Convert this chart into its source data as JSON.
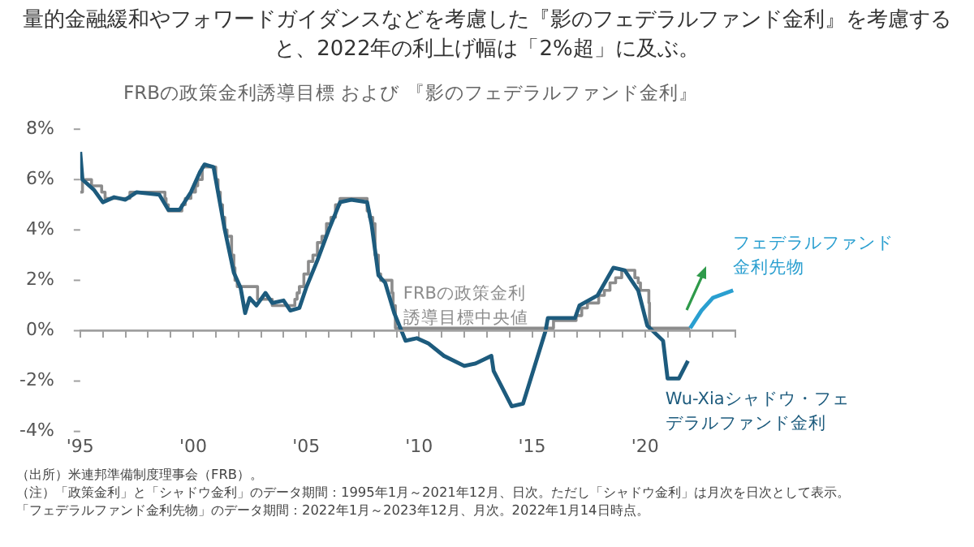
{
  "chart_data": {
    "type": "line",
    "title": "量的金融緩和やフォワードガイダンスなどを考慮した『影のフェデラルファンド金利』を考慮すると、2022年の利上げ幅は「2%超」に及ぶ。",
    "subtitle": "FRBの政策金利誘導目標 および 『影のフェデラルファンド金利』",
    "series": [
      {
        "name": "FRBの政策金利誘導目標中央値",
        "type": "step",
        "color": "#8c8c8c",
        "x": [
          1995.0,
          1995.1,
          1995.5,
          1995.95,
          1996.1,
          1997.2,
          1998.75,
          1998.8,
          1998.9,
          1999.5,
          1999.65,
          1999.9,
          2000.1,
          2000.2,
          2000.4,
          2001.0,
          2001.1,
          2001.2,
          2001.3,
          2001.4,
          2001.5,
          2001.7,
          2001.8,
          2001.85,
          2001.95,
          2002.85,
          2003.5,
          2004.5,
          2004.6,
          2004.7,
          2004.9,
          2005.1,
          2005.3,
          2005.5,
          2005.7,
          2005.9,
          2006.1,
          2006.3,
          2006.5,
          2007.7,
          2007.8,
          2007.95,
          2008.05,
          2008.2,
          2008.3,
          2008.8,
          2008.85,
          2008.95,
          2015.95,
          2016.95,
          2017.2,
          2017.45,
          2017.95,
          2018.2,
          2018.45,
          2018.7,
          2018.97,
          2019.55,
          2019.7,
          2019.8,
          2020.17,
          2020.2,
          2022.0
        ],
        "values": [
          5.5,
          6.0,
          5.75,
          5.5,
          5.25,
          5.5,
          5.25,
          5.0,
          4.75,
          5.0,
          5.25,
          5.5,
          5.75,
          6.0,
          6.5,
          6.0,
          5.5,
          5.0,
          4.5,
          4.0,
          3.75,
          3.0,
          2.5,
          2.0,
          1.75,
          1.25,
          1.0,
          1.25,
          1.5,
          1.75,
          2.25,
          2.75,
          3.0,
          3.5,
          3.75,
          4.25,
          4.5,
          5.0,
          5.25,
          4.75,
          4.5,
          4.25,
          3.0,
          2.25,
          2.0,
          1.5,
          1.0,
          0.1,
          0.4,
          0.6,
          0.9,
          1.1,
          1.4,
          1.6,
          1.9,
          2.1,
          2.4,
          2.1,
          1.9,
          1.6,
          1.1,
          0.1,
          0.1
        ]
      },
      {
        "name": "Wu-Xiaシャドウ・フェデラルファンド金利",
        "color": "#1d5b7d",
        "x": [
          1995.0,
          1995.1,
          1995.6,
          1996.0,
          1996.5,
          1997.0,
          1997.5,
          1998.5,
          1998.9,
          1999.4,
          1999.9,
          2000.3,
          2000.5,
          2000.9,
          2001.1,
          2001.4,
          2001.8,
          2002.1,
          2002.3,
          2002.5,
          2002.8,
          2003.2,
          2003.5,
          2004.0,
          2004.3,
          2004.7,
          2005.0,
          2005.5,
          2006.0,
          2006.5,
          2007.0,
          2007.7,
          2007.9,
          2008.2,
          2008.5,
          2008.9,
          2009.4,
          2009.9,
          2010.4,
          2011.1,
          2012.0,
          2012.5,
          2013.2,
          2013.3,
          2014.1,
          2014.6,
          2015.6,
          2015.7,
          2016.9,
          2017.1,
          2017.9,
          2018.6,
          2019.1,
          2019.7,
          2020.1,
          2020.8,
          2021.0,
          2021.5,
          2021.9
        ],
        "values": [
          7.1,
          6.0,
          5.6,
          5.1,
          5.3,
          5.2,
          5.5,
          5.4,
          4.8,
          4.8,
          5.5,
          6.3,
          6.6,
          6.5,
          5.5,
          4.0,
          2.3,
          1.7,
          0.7,
          1.3,
          1.0,
          1.5,
          1.1,
          1.2,
          0.8,
          0.9,
          1.7,
          2.8,
          4.0,
          5.1,
          5.2,
          5.1,
          4.2,
          2.2,
          1.9,
          0.7,
          -0.4,
          -0.3,
          -0.5,
          -1.0,
          -1.4,
          -1.3,
          -1.0,
          -1.6,
          -3.0,
          -2.9,
          0.0,
          0.5,
          0.5,
          1.0,
          1.4,
          2.5,
          2.4,
          1.6,
          0.2,
          -0.4,
          -1.9,
          -1.9,
          -1.2
        ]
      },
      {
        "name": "フェデラルファンド金利先物",
        "color": "#2a9fd0",
        "x": [
          2022.0,
          2022.5,
          2023.0,
          2023.9
        ],
        "values": [
          0.1,
          0.8,
          1.3,
          1.6
        ]
      }
    ],
    "xlim": [
      1995,
      2024
    ],
    "xticks": [
      {
        "value": 1995,
        "label": "'95"
      },
      {
        "value": 1996,
        "label": null
      },
      {
        "value": 1997,
        "label": null
      },
      {
        "value": 1998,
        "label": null
      },
      {
        "value": 1999,
        "label": null
      },
      {
        "value": 2000,
        "label": "'00"
      },
      {
        "value": 2001,
        "label": null
      },
      {
        "value": 2002,
        "label": null
      },
      {
        "value": 2003,
        "label": null
      },
      {
        "value": 2004,
        "label": null
      },
      {
        "value": 2005,
        "label": "'05"
      },
      {
        "value": 2006,
        "label": null
      },
      {
        "value": 2007,
        "label": null
      },
      {
        "value": 2008,
        "label": null
      },
      {
        "value": 2009,
        "label": null
      },
      {
        "value": 2010,
        "label": "'10"
      },
      {
        "value": 2011,
        "label": null
      },
      {
        "value": 2012,
        "label": null
      },
      {
        "value": 2013,
        "label": null
      },
      {
        "value": 2014,
        "label": null
      },
      {
        "value": 2015,
        "label": "'15"
      },
      {
        "value": 2016,
        "label": null
      },
      {
        "value": 2017,
        "label": null
      },
      {
        "value": 2018,
        "label": null
      },
      {
        "value": 2019,
        "label": null
      },
      {
        "value": 2020,
        "label": "'20"
      },
      {
        "value": 2021,
        "label": null
      },
      {
        "value": 2022,
        "label": null
      },
      {
        "value": 2023,
        "label": null
      },
      {
        "value": 2024,
        "label": null
      }
    ],
    "ylim": [
      -4,
      8
    ],
    "yticks": [
      {
        "value": -4,
        "label": "-4%"
      },
      {
        "value": -2,
        "label": "-2%"
      },
      {
        "value": 0,
        "label": "0%"
      },
      {
        "value": 2,
        "label": "2%"
      },
      {
        "value": 4,
        "label": "4%"
      },
      {
        "value": 6,
        "label": "6%"
      },
      {
        "value": 8,
        "label": "8%"
      }
    ],
    "ref_lines": [
      {
        "axis": "y",
        "value": 0,
        "color": "#a0a0a0",
        "line_style": "solid"
      }
    ],
    "grid": false,
    "legend": false,
    "marker": "none",
    "line_style": "solid",
    "annotations": [
      "（出所）米連邦準備制度理事会（FRB）。",
      "（注）「政策金利」と「シャドウ金利」のデータ期間：1995年1月～2021年12月、日次。ただし「シャドウ金利」は月次を日次として表示。",
      "「フェデラルファンド金利先物」のデータ期間：2022年1月～2023年12月、月次。2022年1月14日時点。"
    ]
  }
}
